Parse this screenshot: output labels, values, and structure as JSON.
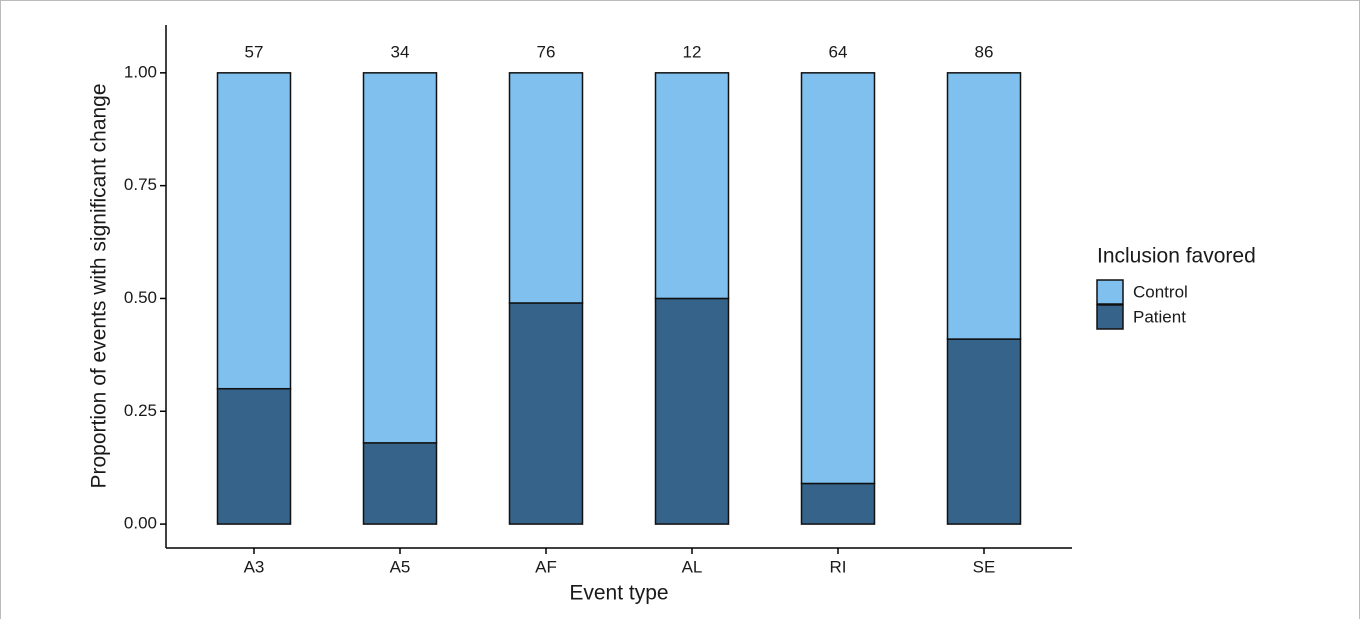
{
  "chart_data": {
    "type": "stacked_bar",
    "x_label": "Event type",
    "y_label": "Proportion of events with significant change",
    "categories": [
      "A3",
      "A5",
      "AF",
      "AL",
      "RI",
      "SE"
    ],
    "counts": [
      57,
      34,
      76,
      12,
      64,
      86
    ],
    "series": [
      {
        "name": "Control",
        "color": "#7fc0ee",
        "values": [
          0.7,
          0.82,
          0.51,
          0.5,
          0.91,
          0.59
        ]
      },
      {
        "name": "Patient",
        "color": "#366389",
        "values": [
          0.3,
          0.18,
          0.49,
          0.5,
          0.09,
          0.41
        ]
      }
    ],
    "legend_title": "Inclusion favored",
    "legend_position": "right",
    "ylim": [
      -0.053,
      1.106
    ],
    "yticks": [
      {
        "value": 0,
        "label": "0.00"
      },
      {
        "value": 0.25,
        "label": "0.25"
      },
      {
        "value": 0.5,
        "label": "0.50"
      },
      {
        "value": 0.75,
        "label": "0.75"
      },
      {
        "value": 1,
        "label": "1.00"
      }
    ],
    "grid": false
  }
}
